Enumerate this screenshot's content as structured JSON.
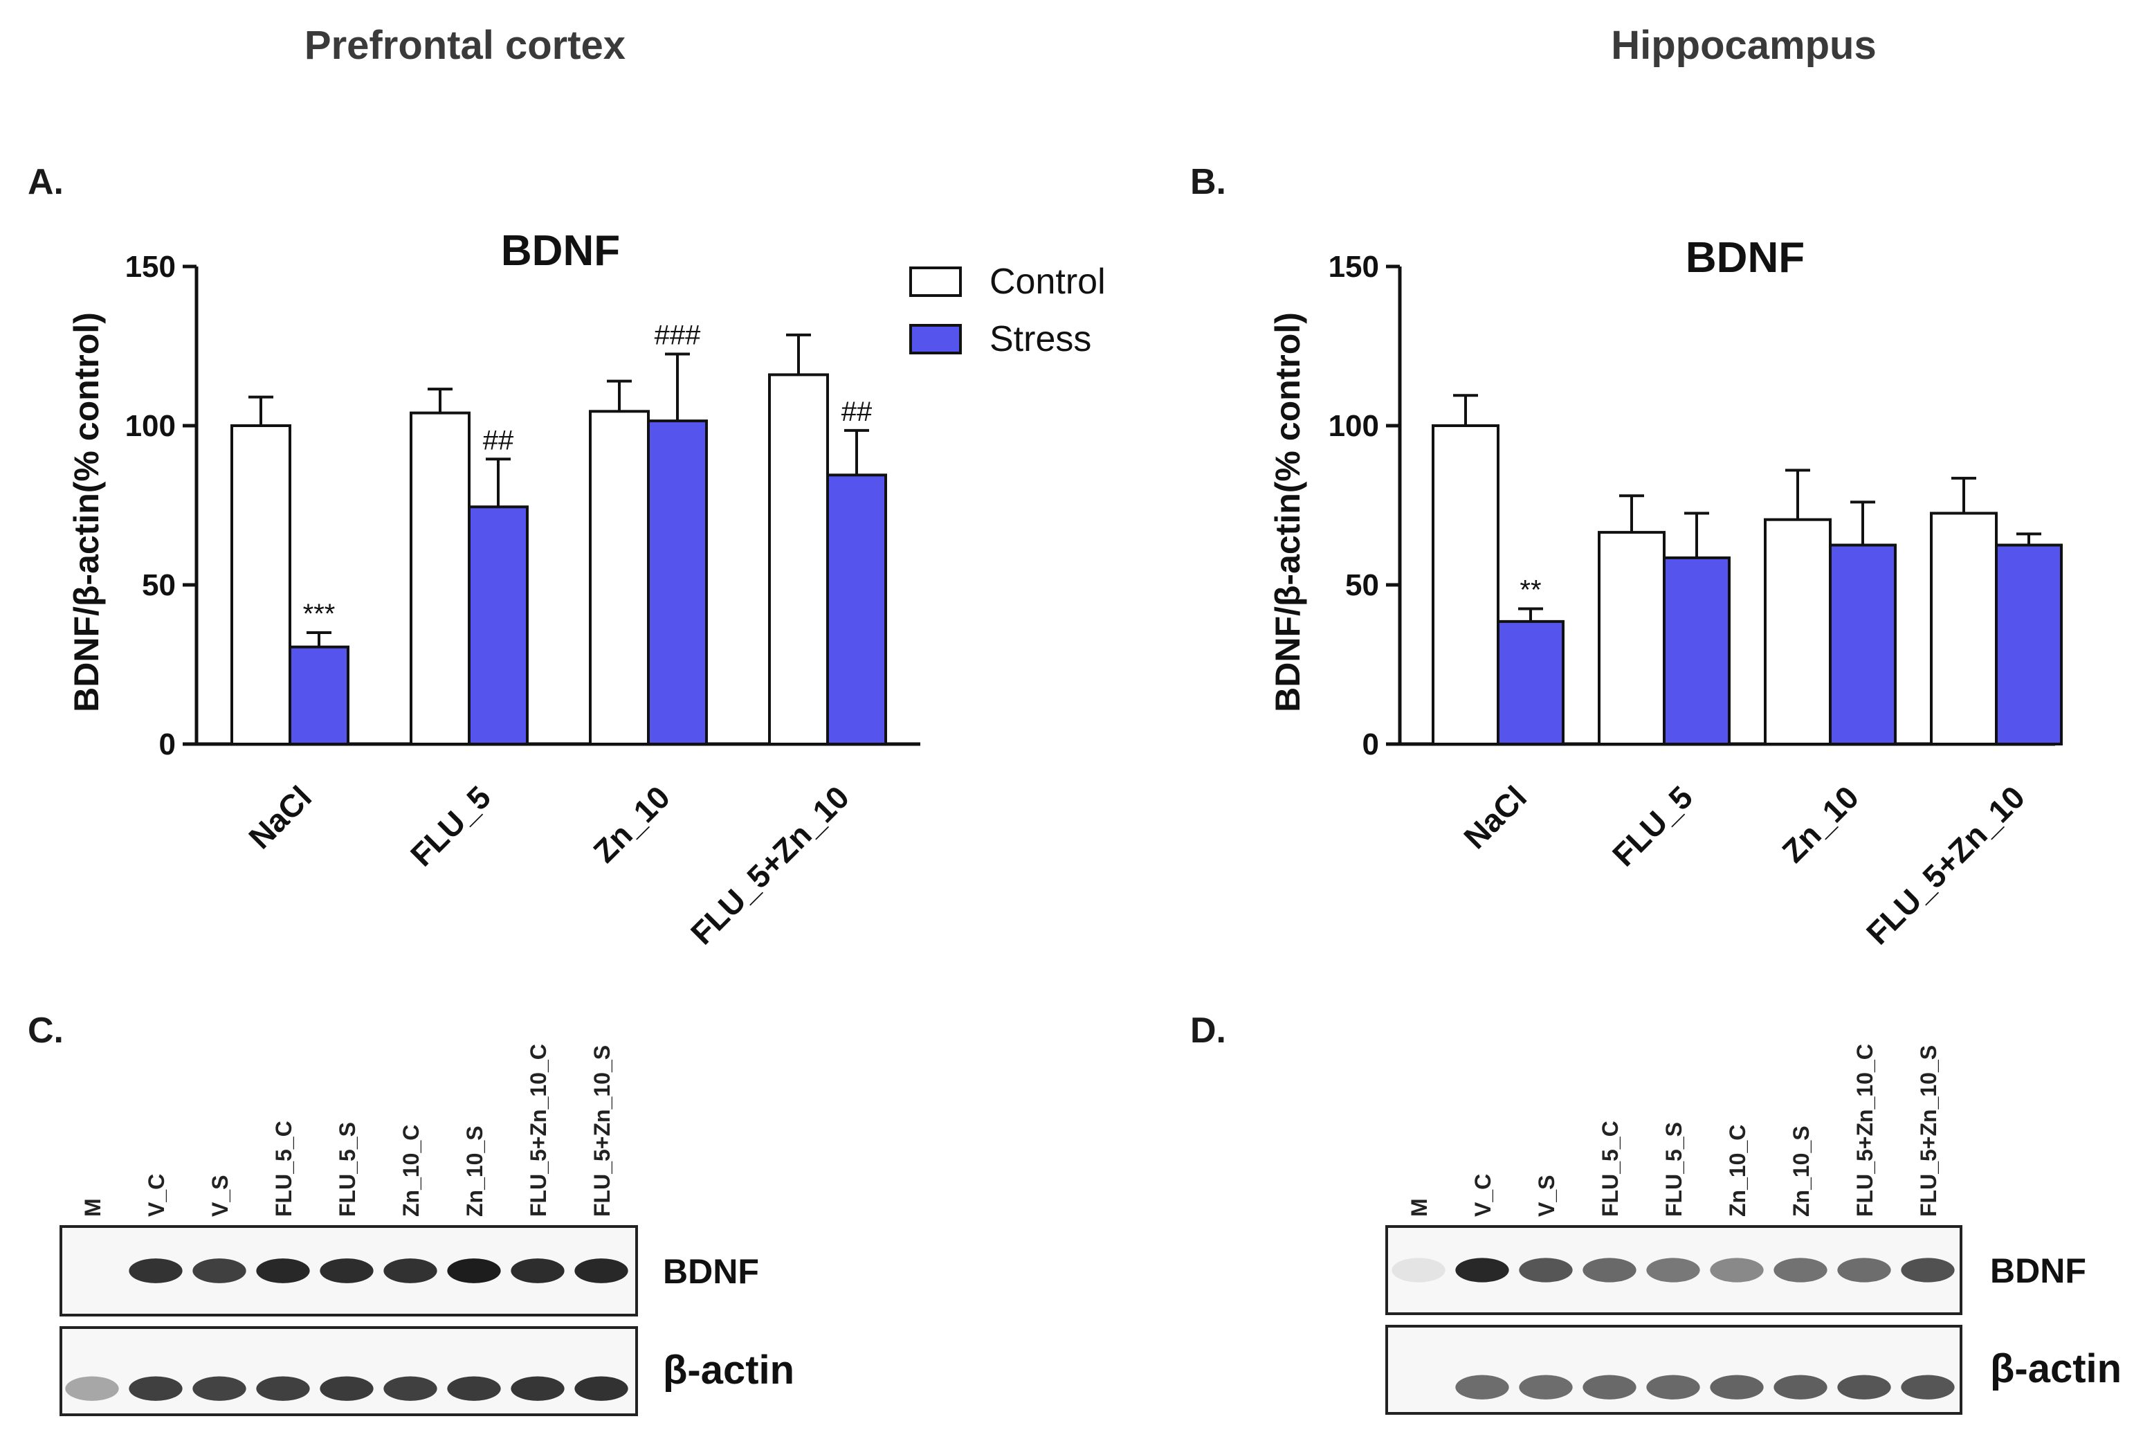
{
  "figure": {
    "titles": {
      "left": "Prefrontal cortex",
      "right": "Hippocampus"
    },
    "panel_labels": {
      "A": "A.",
      "B": "B.",
      "C": "C.",
      "D": "D."
    },
    "legend": {
      "items": [
        {
          "label": "Control",
          "color": "#ffffff"
        },
        {
          "label": "Stress",
          "color": "#5555ee"
        }
      ]
    },
    "colors": {
      "control": "#ffffff",
      "stress": "#5555ee",
      "axis": "#111111"
    },
    "western_blots": [
      {
        "panel": "C",
        "lanes": [
          "M",
          "V_C",
          "V_S",
          "FLU_5_C",
          "FLU_5_S",
          "Zn_10_C",
          "Zn_10_S",
          "FLU_5+Zn_10_C",
          "FLU_5+Zn_10_S"
        ],
        "bands": [
          {
            "label": "BDNF",
            "intensity": [
              0.0,
              0.85,
              0.8,
              0.9,
              0.88,
              0.86,
              0.95,
              0.88,
              0.9
            ]
          },
          {
            "label": "β-actin",
            "intensity": [
              0.35,
              0.8,
              0.78,
              0.8,
              0.82,
              0.8,
              0.82,
              0.84,
              0.86
            ]
          }
        ]
      },
      {
        "panel": "D",
        "lanes": [
          "M",
          "V_C",
          "V_S",
          "FLU_5_C",
          "FLU_5_S",
          "Zn_10_C",
          "Zn_10_S",
          "FLU_5+Zn_10_C",
          "FLU_5+Zn_10_S"
        ],
        "bands": [
          {
            "label": "BDNF",
            "intensity": [
              0.08,
              0.9,
              0.7,
              0.62,
              0.55,
              0.48,
              0.58,
              0.6,
              0.72
            ]
          },
          {
            "label": "β-actin",
            "intensity": [
              0.0,
              0.6,
              0.6,
              0.62,
              0.62,
              0.64,
              0.66,
              0.7,
              0.7
            ]
          }
        ]
      }
    ]
  },
  "chart_data": [
    {
      "panel": "A",
      "type": "bar",
      "title": "BDNF",
      "xlabel": "",
      "ylabel": "BDNF/β-actin(% control)",
      "ylim": [
        0,
        150
      ],
      "yticks": [
        0,
        50,
        100,
        150
      ],
      "categories": [
        "NaCl",
        "FLU_5",
        "Zn_10",
        "FLU_5+Zn_10"
      ],
      "series": [
        {
          "name": "Control",
          "values": [
            100,
            104,
            104.5,
            116
          ],
          "errors": [
            9,
            7.5,
            9.5,
            12.5
          ],
          "annotations": [
            "",
            "",
            "",
            ""
          ]
        },
        {
          "name": "Stress",
          "values": [
            30.5,
            74.5,
            101.5,
            84.5
          ],
          "errors": [
            4.5,
            15,
            21,
            14
          ],
          "annotations": [
            "***",
            "##",
            "###",
            "##"
          ]
        }
      ]
    },
    {
      "panel": "B",
      "type": "bar",
      "title": "BDNF",
      "xlabel": "",
      "ylabel": "BDNF/β-actin(% control)",
      "ylim": [
        0,
        150
      ],
      "yticks": [
        0,
        50,
        100,
        150
      ],
      "categories": [
        "NaCl",
        "FLU_5",
        "Zn_10",
        "FLU_5+Zn_10"
      ],
      "series": [
        {
          "name": "Control",
          "values": [
            100,
            66.5,
            70.5,
            72.5
          ],
          "errors": [
            9.5,
            11.5,
            15.5,
            11
          ],
          "annotations": [
            "",
            "",
            "",
            ""
          ]
        },
        {
          "name": "Stress",
          "values": [
            38.5,
            58.5,
            62.5,
            62.5
          ],
          "errors": [
            4,
            14,
            13.5,
            3.5
          ],
          "annotations": [
            "**",
            "",
            "",
            ""
          ]
        }
      ]
    }
  ]
}
